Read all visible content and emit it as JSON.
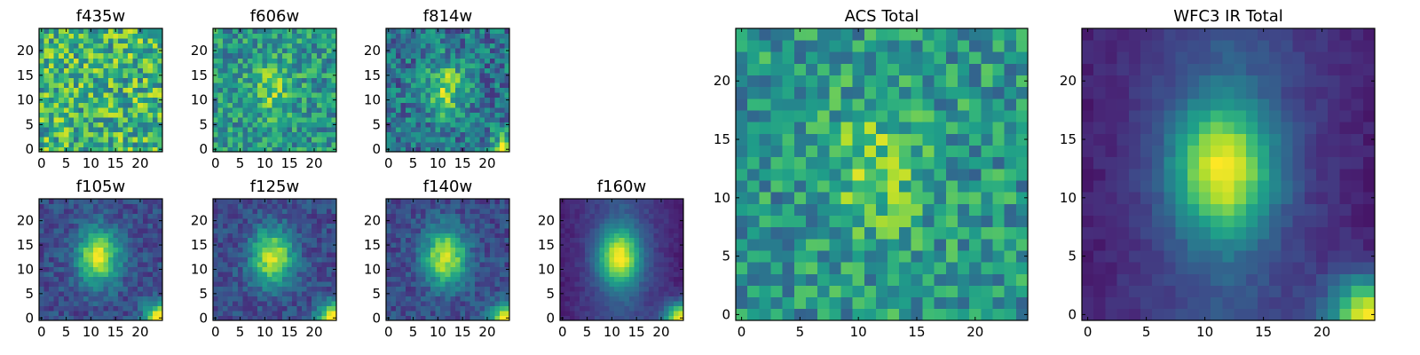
{
  "chart_data": [
    {
      "type": "heatmap",
      "title": "f435w",
      "grid": "off",
      "colormap": "viridis",
      "pattern": "noise",
      "size": [
        25,
        25
      ],
      "xlim": [
        0,
        24
      ],
      "ylim": [
        0,
        24
      ],
      "xticks": [
        0,
        5,
        10,
        15,
        20
      ],
      "yticks": [
        0,
        5,
        10,
        15,
        20
      ],
      "xtick_labels": [
        "0",
        "5",
        "10",
        "15",
        "20"
      ],
      "ytick_labels": [
        "0",
        "5",
        "10",
        "15",
        "20"
      ]
    },
    {
      "type": "heatmap",
      "title": "f606w",
      "grid": "off",
      "colormap": "viridis",
      "pattern": "noise-with-faint-center",
      "size": [
        25,
        25
      ],
      "xlim": [
        0,
        24
      ],
      "ylim": [
        0,
        24
      ],
      "xticks": [
        0,
        5,
        10,
        15,
        20
      ],
      "yticks": [
        0,
        5,
        10,
        15,
        20
      ],
      "xtick_labels": [
        "0",
        "5",
        "10",
        "15",
        "20"
      ],
      "ytick_labels": [
        "0",
        "5",
        "10",
        "15",
        "20"
      ]
    },
    {
      "type": "heatmap",
      "title": "f814w",
      "grid": "off",
      "colormap": "viridis",
      "pattern": "noise-with-source",
      "size": [
        25,
        25
      ],
      "xlim": [
        0,
        24
      ],
      "ylim": [
        0,
        24
      ],
      "xticks": [
        0,
        5,
        10,
        15,
        20
      ],
      "yticks": [
        0,
        5,
        10,
        15,
        20
      ],
      "xtick_labels": [
        "0",
        "5",
        "10",
        "15",
        "20"
      ],
      "ytick_labels": [
        "0",
        "5",
        "10",
        "15",
        "20"
      ]
    },
    {
      "type": "heatmap",
      "title": "f105w",
      "grid": "off",
      "colormap": "viridis",
      "pattern": "source",
      "size": [
        25,
        25
      ],
      "xlim": [
        0,
        24
      ],
      "ylim": [
        0,
        24
      ],
      "xticks": [
        0,
        5,
        10,
        15,
        20
      ],
      "yticks": [
        0,
        5,
        10,
        15,
        20
      ],
      "xtick_labels": [
        "0",
        "5",
        "10",
        "15",
        "20"
      ],
      "ytick_labels": [
        "0",
        "5",
        "10",
        "15",
        "20"
      ]
    },
    {
      "type": "heatmap",
      "title": "f125w",
      "grid": "off",
      "colormap": "viridis",
      "pattern": "source",
      "size": [
        25,
        25
      ],
      "xlim": [
        0,
        24
      ],
      "ylim": [
        0,
        24
      ],
      "xticks": [
        0,
        5,
        10,
        15,
        20
      ],
      "yticks": [
        0,
        5,
        10,
        15,
        20
      ],
      "xtick_labels": [
        "0",
        "5",
        "10",
        "15",
        "20"
      ],
      "ytick_labels": [
        "0",
        "5",
        "10",
        "15",
        "20"
      ]
    },
    {
      "type": "heatmap",
      "title": "f140w",
      "grid": "off",
      "colormap": "viridis",
      "pattern": "source",
      "size": [
        25,
        25
      ],
      "xlim": [
        0,
        24
      ],
      "ylim": [
        0,
        24
      ],
      "xticks": [
        0,
        5,
        10,
        15,
        20
      ],
      "yticks": [
        0,
        5,
        10,
        15,
        20
      ],
      "xtick_labels": [
        "0",
        "5",
        "10",
        "15",
        "20"
      ],
      "ytick_labels": [
        "0",
        "5",
        "10",
        "15",
        "20"
      ]
    },
    {
      "type": "heatmap",
      "title": "f160w",
      "grid": "off",
      "colormap": "viridis",
      "pattern": "source-smooth",
      "size": [
        25,
        25
      ],
      "xlim": [
        0,
        24
      ],
      "ylim": [
        0,
        24
      ],
      "xticks": [
        0,
        5,
        10,
        15,
        20
      ],
      "yticks": [
        0,
        5,
        10,
        15,
        20
      ],
      "xtick_labels": [
        "0",
        "5",
        "10",
        "15",
        "20"
      ],
      "ytick_labels": [
        "0",
        "5",
        "10",
        "15",
        "20"
      ]
    },
    {
      "type": "heatmap",
      "title": "ACS Total",
      "grid": "off",
      "colormap": "viridis",
      "pattern": "noise-with-faint-center",
      "size": [
        25,
        25
      ],
      "xlim": [
        0,
        24
      ],
      "ylim": [
        0,
        24
      ],
      "xticks": [
        0,
        5,
        10,
        15,
        20
      ],
      "yticks": [
        0,
        5,
        10,
        15,
        20
      ],
      "xtick_labels": [
        "0",
        "5",
        "10",
        "15",
        "20"
      ],
      "ytick_labels": [
        "0",
        "5",
        "10",
        "15",
        "20"
      ]
    },
    {
      "type": "heatmap",
      "title": "WFC3 IR Total",
      "grid": "off",
      "colormap": "viridis",
      "pattern": "source-smooth",
      "size": [
        25,
        25
      ],
      "xlim": [
        0,
        24
      ],
      "ylim": [
        0,
        24
      ],
      "xticks": [
        0,
        5,
        10,
        15,
        20
      ],
      "yticks": [
        0,
        5,
        10,
        15,
        20
      ],
      "xtick_labels": [
        "0",
        "5",
        "10",
        "15",
        "20"
      ],
      "ytick_labels": [
        "0",
        "5",
        "10",
        "15",
        "20"
      ]
    }
  ]
}
